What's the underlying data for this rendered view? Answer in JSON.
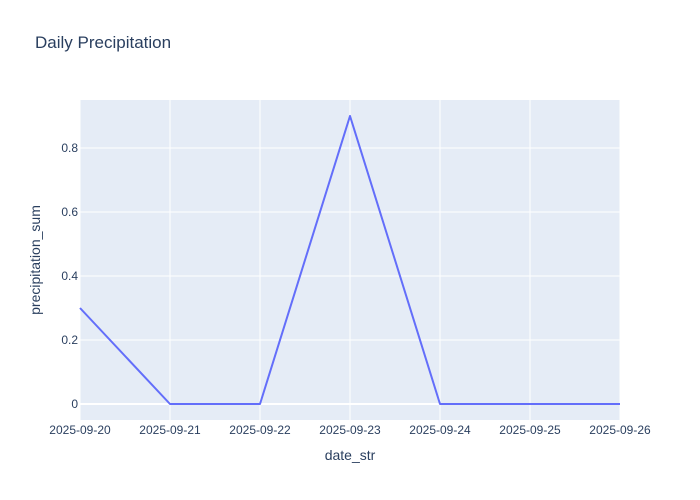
{
  "chart_data": {
    "type": "line",
    "title": "Daily Precipitation",
    "xlabel": "date_str",
    "ylabel": "precipitation_sum",
    "x": [
      "2025-09-20",
      "2025-09-21",
      "2025-09-22",
      "2025-09-23",
      "2025-09-24",
      "2025-09-25",
      "2025-09-26"
    ],
    "series": [
      {
        "values": [
          0.3,
          0,
          0,
          0.9,
          0,
          0,
          0
        ]
      }
    ],
    "ylim": [
      -0.05,
      0.95
    ],
    "yticks": [
      0,
      0.2,
      0.4,
      0.6,
      0.8
    ],
    "ytick_labels": [
      "0",
      "0.2",
      "0.4",
      "0.6",
      "0.8"
    ],
    "grid": true,
    "colors": {
      "plot_background": "#e5ecf6",
      "grid": "#ffffff",
      "line": "#636efa",
      "text": "#2a3f5f"
    }
  }
}
